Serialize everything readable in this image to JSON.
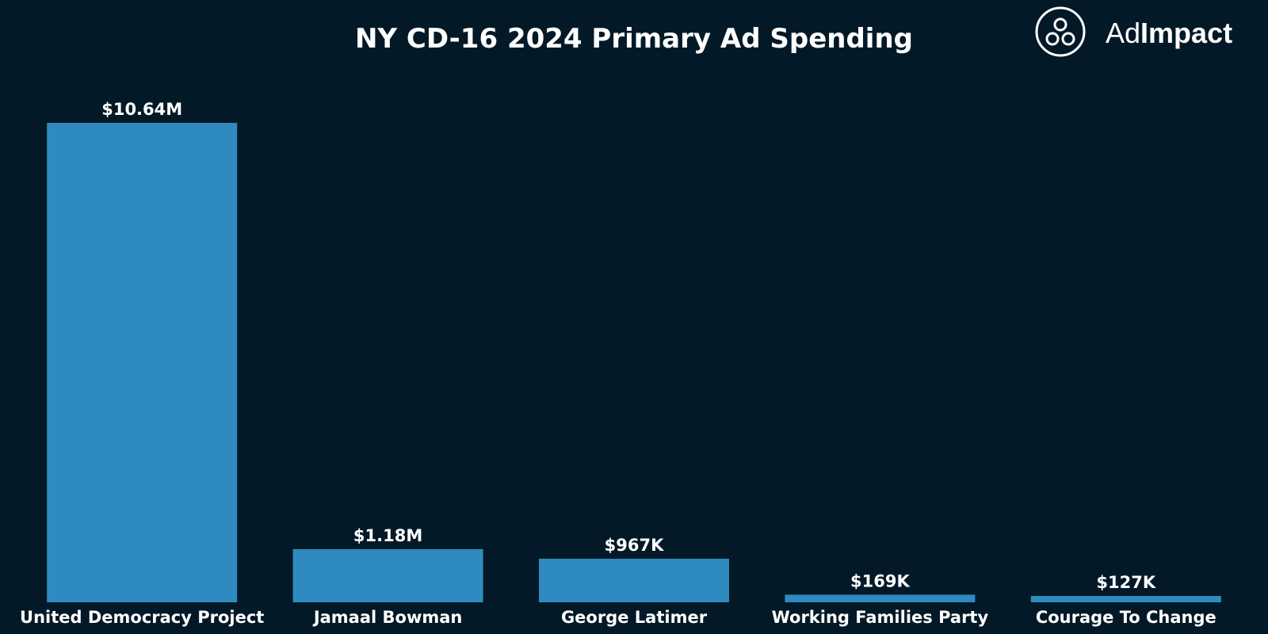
{
  "brand": {
    "name_prefix": "Ad",
    "name_suffix": "Impact",
    "logo_icon": "three-circles-icon"
  },
  "colors": {
    "background": "#031927",
    "bar": "#2f8bbf",
    "text": "#ffffff"
  },
  "chart_data": {
    "type": "bar",
    "title": "NY CD-16 2024 Primary Ad Spending",
    "xlabel": "",
    "ylabel": "",
    "categories": [
      "United Democracy Project",
      "Jamaal Bowman",
      "George Latimer",
      "Working Families Party",
      "Courage To Change"
    ],
    "values": [
      10640000,
      1180000,
      967000,
      169000,
      127000
    ],
    "value_labels": [
      "$10.64M",
      "$1.18M",
      "$967K",
      "$169K",
      "$127K"
    ],
    "ylim": [
      0,
      10640000
    ],
    "grid": false,
    "legend": "none",
    "axis_visible": false
  }
}
